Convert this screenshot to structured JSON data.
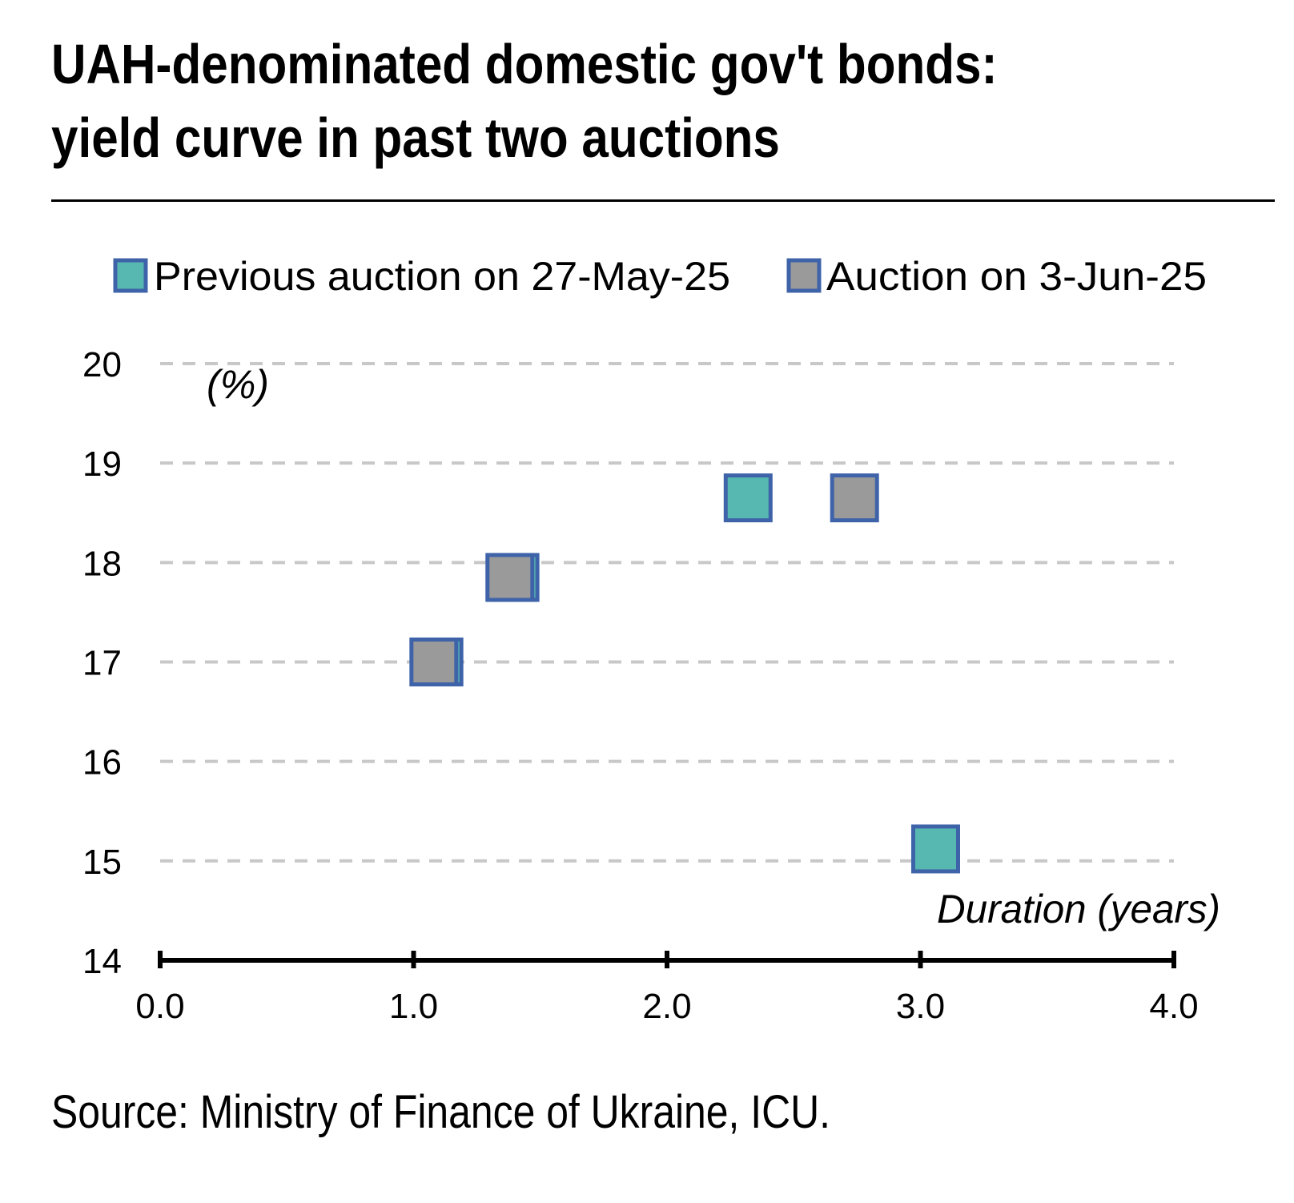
{
  "chart_data": {
    "type": "scatter",
    "title": "UAH-denominated domestic gov't bonds: yield curve in past two auctions",
    "title_lines": [
      "UAH-denominated domestic gov't bonds:",
      "yield curve in past two auctions"
    ],
    "xlabel": "Duration (years)",
    "ylabel": "(%)",
    "xlim": [
      0.0,
      4.0
    ],
    "ylim": [
      14,
      20
    ],
    "x_ticks": [
      "0.0",
      "1.0",
      "2.0",
      "3.0",
      "4.0"
    ],
    "y_ticks": [
      "20",
      "19",
      "18",
      "17",
      "16",
      "15",
      "14"
    ],
    "grid": true,
    "legend_position": "top",
    "series": [
      {
        "name": "Previous auction on 27-May-25",
        "color": "#56B8B0",
        "edge_color": "#3F63A9",
        "points": [
          {
            "x": 1.1,
            "y": 17.0
          },
          {
            "x": 1.4,
            "y": 17.85
          },
          {
            "x": 2.32,
            "y": 18.65
          },
          {
            "x": 3.06,
            "y": 15.12
          }
        ]
      },
      {
        "name": "Auction on 3-Jun-25",
        "color": "#9A9A9A",
        "edge_color": "#3F63A9",
        "points": [
          {
            "x": 1.08,
            "y": 17.0
          },
          {
            "x": 1.38,
            "y": 17.85
          },
          {
            "x": 2.74,
            "y": 18.65
          }
        ]
      }
    ]
  },
  "source": "Source: Ministry of Finance of Ukraine, ICU."
}
